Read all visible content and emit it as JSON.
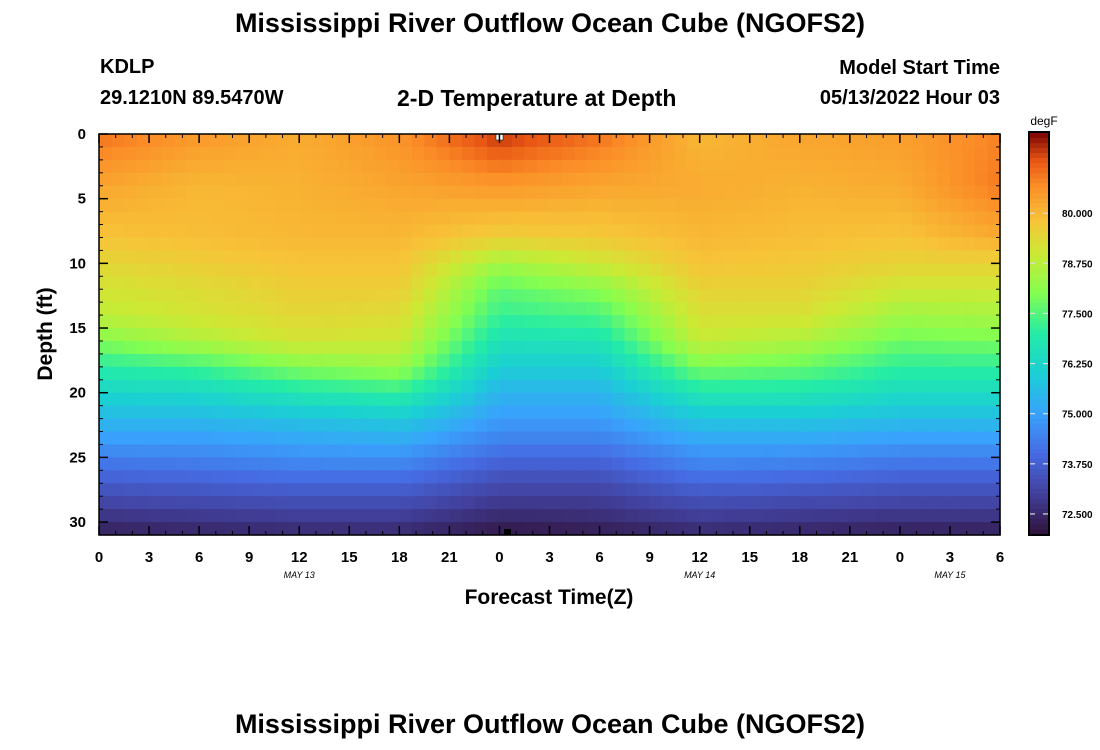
{
  "page": {
    "title": "Mississippi River Outflow Ocean Cube (NGOFS2)",
    "bottom_title": "Mississippi River Outflow Ocean Cube (NGOFS2)",
    "station": "KDLP",
    "location": "29.1210N  89.5470W",
    "subtitle": "2-D Temperature at Depth",
    "model_start_label": "Model Start Time",
    "model_start_value": "05/13/2022 Hour 03"
  },
  "chart_data": {
    "type": "heatmap",
    "xlabel": "Forecast Time(Z)",
    "ylabel": "Depth (ft)",
    "x_ticks": [
      "0",
      "3",
      "6",
      "9",
      "12",
      "15",
      "18",
      "21",
      "0",
      "3",
      "6",
      "9",
      "12",
      "15",
      "18",
      "21",
      "0",
      "3",
      "6"
    ],
    "x_range_hours": [
      0,
      54
    ],
    "date_labels": [
      {
        "label": "MAY 13",
        "hour": 12
      },
      {
        "label": "MAY 14",
        "hour": 36
      },
      {
        "label": "MAY 15",
        "hour": 51
      }
    ],
    "y_ticks": [
      "0",
      "5",
      "10",
      "15",
      "20",
      "25",
      "30"
    ],
    "y_range_ft": [
      0,
      31
    ],
    "colorbar": {
      "unit": "degF",
      "range": [
        72.0,
        82.0
      ],
      "ticks": [
        "80.000",
        "78.750",
        "77.500",
        "76.250",
        "75.000",
        "73.750",
        "72.500"
      ]
    },
    "temperature_profiles": {
      "depth_ft": [
        0,
        4,
        8,
        10,
        12,
        14,
        16,
        18,
        20,
        22,
        24,
        26,
        28,
        30,
        31
      ],
      "by_hour": [
        {
          "hour": 0,
          "temp": [
            81.0,
            80.3,
            79.8,
            79.4,
            79.1,
            78.8,
            78.0,
            77.0,
            76.2,
            75.5,
            74.8,
            74.0,
            73.3,
            72.6,
            72.3
          ]
        },
        {
          "hour": 6,
          "temp": [
            80.5,
            80.0,
            79.9,
            79.6,
            79.3,
            79.1,
            78.6,
            77.3,
            76.3,
            75.5,
            74.8,
            74.1,
            73.4,
            72.7,
            72.4
          ]
        },
        {
          "hour": 12,
          "temp": [
            80.2,
            80.1,
            80.0,
            79.8,
            79.6,
            79.4,
            79.1,
            78.0,
            76.8,
            75.7,
            75.0,
            74.3,
            73.5,
            72.8,
            72.5
          ]
        },
        {
          "hour": 18,
          "temp": [
            80.6,
            80.3,
            80.0,
            79.8,
            79.6,
            79.3,
            79.0,
            78.3,
            77.1,
            75.9,
            75.1,
            74.3,
            73.5,
            72.8,
            72.5
          ]
        },
        {
          "hour": 24,
          "temp": [
            81.6,
            80.5,
            79.6,
            78.4,
            77.6,
            77.2,
            76.6,
            76.0,
            75.4,
            74.9,
            74.3,
            73.6,
            73.0,
            72.4,
            72.1
          ]
        },
        {
          "hour": 30,
          "temp": [
            81.0,
            80.3,
            79.7,
            79.0,
            78.1,
            77.4,
            76.7,
            76.0,
            75.4,
            74.9,
            74.3,
            73.6,
            73.0,
            72.5,
            72.2
          ]
        },
        {
          "hour": 36,
          "temp": [
            80.0,
            80.2,
            80.0,
            79.8,
            79.5,
            79.2,
            78.9,
            77.9,
            76.8,
            75.8,
            75.0,
            74.3,
            73.5,
            72.8,
            72.5
          ]
        },
        {
          "hour": 42,
          "temp": [
            80.3,
            80.1,
            79.9,
            79.7,
            79.5,
            79.2,
            78.6,
            77.7,
            76.8,
            75.8,
            75.0,
            74.2,
            73.4,
            72.7,
            72.4
          ]
        },
        {
          "hour": 48,
          "temp": [
            80.4,
            80.2,
            79.8,
            79.5,
            79.0,
            78.4,
            77.8,
            77.1,
            76.4,
            75.6,
            74.8,
            74.0,
            73.3,
            72.6,
            72.3
          ]
        },
        {
          "hour": 54,
          "temp": [
            80.8,
            80.9,
            80.2,
            79.5,
            79.0,
            78.5,
            77.9,
            77.1,
            76.4,
            75.6,
            74.8,
            74.0,
            73.3,
            72.6,
            72.3
          ]
        }
      ]
    }
  }
}
